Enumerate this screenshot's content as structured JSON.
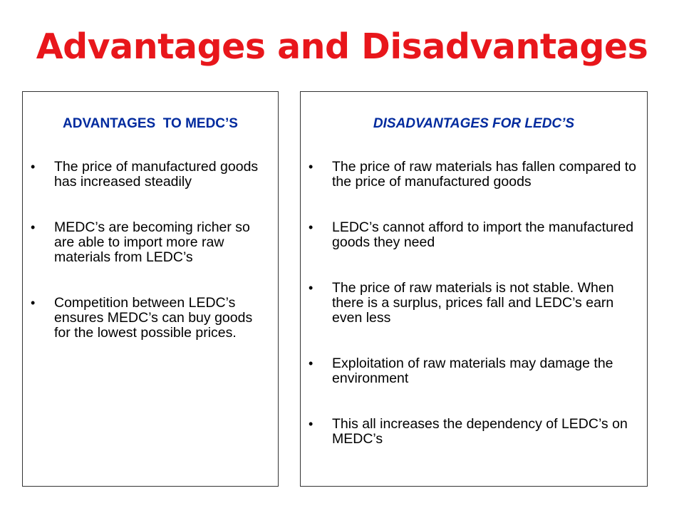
{
  "slide": {
    "title": "Advantages and Disadvantages"
  },
  "left_panel": {
    "heading": "ADVANTAGES  TO MEDC’S",
    "items": [
      "The price of manufactured goods has increased steadily",
      "MEDC’s are becoming richer so are able to import more raw materials from LEDC’s",
      "Competition between LEDC’s ensures MEDC’s can buy goods for the lowest possible prices."
    ]
  },
  "right_panel": {
    "heading": "DISADVANTAGES FOR LEDC’S",
    "items": [
      "The price of raw materials has fallen compared to the price of manufactured goods",
      "LEDC’s cannot afford to import the manufactured goods they need",
      "The price of raw materials is not stable. When there is a surplus, prices fall and LEDC’s earn even less",
      "Exploitation of raw materials may damage the environment",
      "This all increases the dependency of LEDC’s on MEDC’s"
    ]
  },
  "bullet_glyph": "•",
  "colors": {
    "title": "#e8161b",
    "heading": "#002a9e",
    "body_text": "#000000",
    "border": "#333333"
  }
}
